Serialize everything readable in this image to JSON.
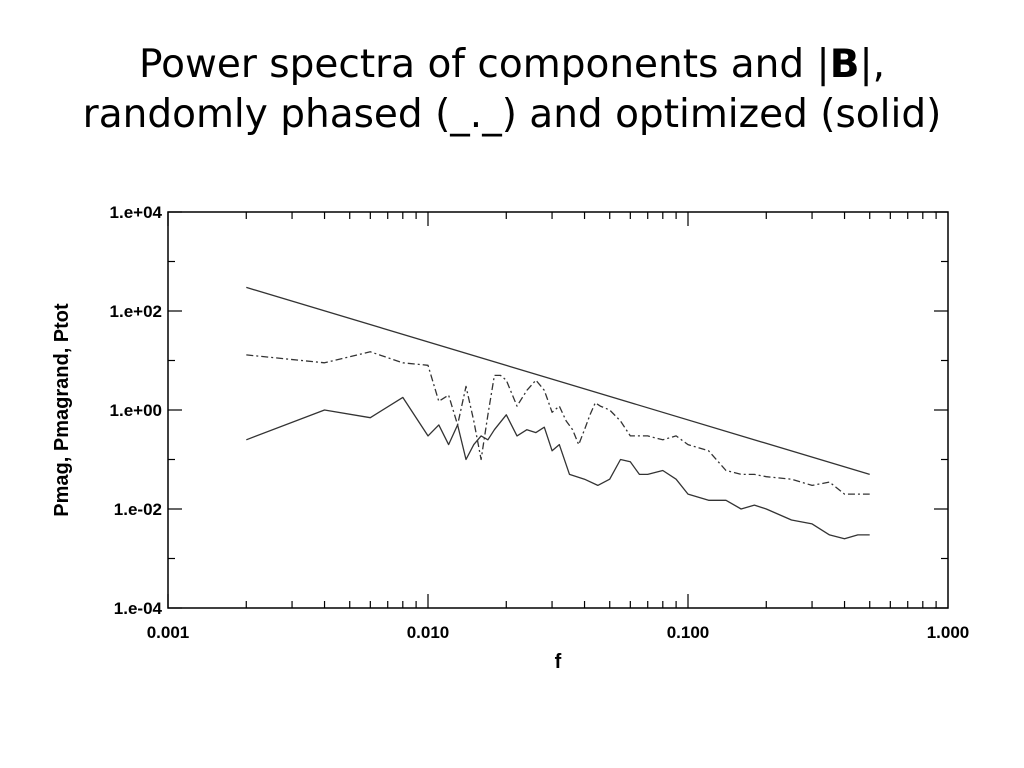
{
  "slide": {
    "title_line1_pre": "Power spectra of components and |",
    "title_line1_bold": "B",
    "title_line1_post": "|,",
    "title_line2": "randomly phased (_._) and optimized (solid)"
  },
  "chart_data": {
    "type": "line",
    "xlabel": "f",
    "ylabel": "Pmag, Pmagrand, Ptot",
    "xscale": "log",
    "yscale": "log",
    "xlim": [
      0.001,
      1.0
    ],
    "ylim": [
      0.0001,
      10000
    ],
    "xticks": [
      0.001,
      0.01,
      0.1,
      1.0
    ],
    "xtick_labels": [
      "0.001",
      "0.010",
      "0.100",
      "1.000"
    ],
    "yticks": [
      0.0001,
      0.01,
      1,
      100,
      10000
    ],
    "ytick_labels": [
      "1.e-04",
      "1.e-02",
      "1.e+00",
      "1.e+02",
      "1.e+04"
    ],
    "grid": false,
    "series": [
      {
        "style": "solid-straight",
        "x": [
          0.002,
          0.5
        ],
        "y": [
          300,
          0.05
        ]
      },
      {
        "style": "dash-dot",
        "x": [
          0.002,
          0.004,
          0.006,
          0.008,
          0.01,
          0.011,
          0.012,
          0.013,
          0.014,
          0.015,
          0.016,
          0.017,
          0.018,
          0.019,
          0.02,
          0.022,
          0.024,
          0.026,
          0.028,
          0.03,
          0.032,
          0.034,
          0.036,
          0.038,
          0.04,
          0.042,
          0.044,
          0.046,
          0.05,
          0.055,
          0.06,
          0.065,
          0.07,
          0.08,
          0.09,
          0.1,
          0.12,
          0.14,
          0.16,
          0.18,
          0.2,
          0.25,
          0.3,
          0.35,
          0.4,
          0.45,
          0.5
        ],
        "y": [
          13,
          9,
          15,
          9,
          8,
          1.5,
          2,
          0.5,
          3,
          0.6,
          0.1,
          0.8,
          5,
          5,
          4,
          1.2,
          2.5,
          4,
          2.5,
          0.9,
          1.2,
          0.6,
          0.4,
          0.2,
          0.4,
          0.8,
          1.4,
          1.2,
          1.0,
          0.6,
          0.3,
          0.3,
          0.3,
          0.25,
          0.3,
          0.2,
          0.15,
          0.06,
          0.05,
          0.05,
          0.045,
          0.04,
          0.03,
          0.035,
          0.02,
          0.02,
          0.02
        ]
      },
      {
        "style": "solid",
        "x": [
          0.002,
          0.004,
          0.006,
          0.008,
          0.01,
          0.011,
          0.012,
          0.013,
          0.014,
          0.015,
          0.016,
          0.017,
          0.018,
          0.02,
          0.022,
          0.024,
          0.026,
          0.028,
          0.03,
          0.032,
          0.035,
          0.04,
          0.045,
          0.05,
          0.055,
          0.06,
          0.065,
          0.07,
          0.08,
          0.09,
          0.1,
          0.12,
          0.14,
          0.16,
          0.18,
          0.2,
          0.25,
          0.3,
          0.35,
          0.4,
          0.45,
          0.5
        ],
        "y": [
          0.25,
          1.0,
          0.7,
          1.8,
          0.3,
          0.5,
          0.2,
          0.5,
          0.1,
          0.2,
          0.3,
          0.25,
          0.4,
          0.8,
          0.3,
          0.4,
          0.35,
          0.45,
          0.15,
          0.2,
          0.05,
          0.04,
          0.03,
          0.04,
          0.1,
          0.09,
          0.05,
          0.05,
          0.06,
          0.04,
          0.02,
          0.015,
          0.015,
          0.01,
          0.012,
          0.01,
          0.006,
          0.005,
          0.003,
          0.0025,
          0.003,
          0.003
        ]
      }
    ]
  }
}
